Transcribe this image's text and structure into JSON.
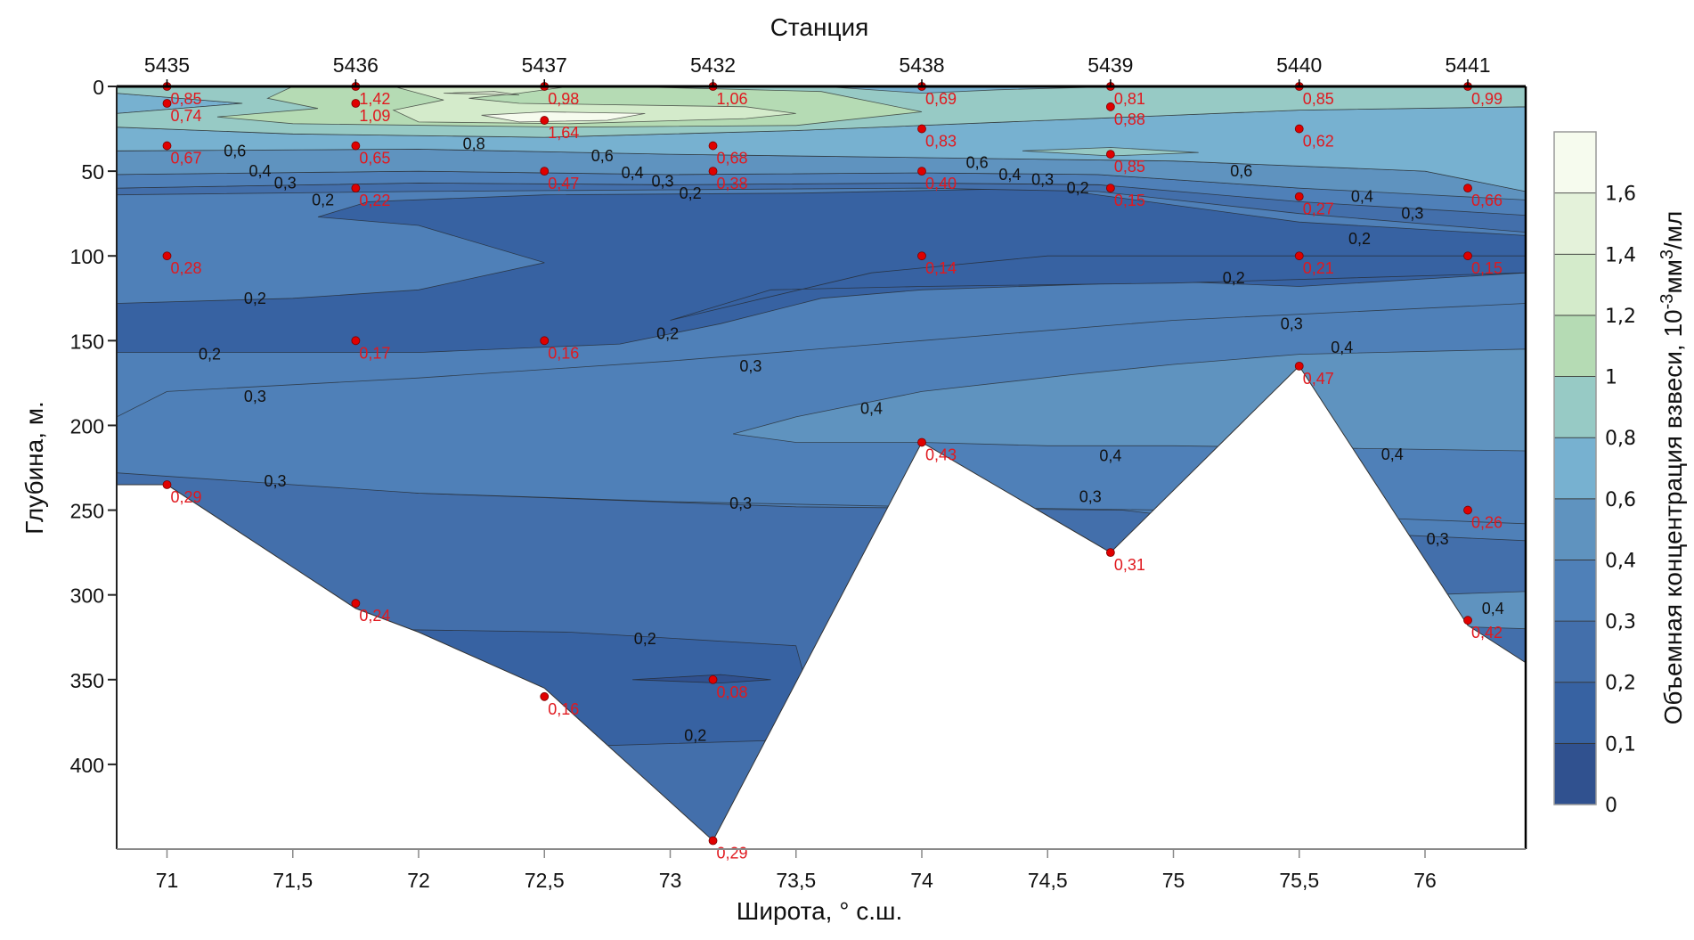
{
  "chart_data": {
    "type": "heatmap",
    "subtype": "filled-contour-section",
    "title": "",
    "top_axis_title": "Станция",
    "xlabel": "Широта, ° с.ш.",
    "ylabel": "Глубина, м.",
    "colorbar_label": "Объемная концентрация взвеси, 10⁻³мм³/мл",
    "colorbar_label_parts": {
      "text": "Объемная концентрация взвеси, 10",
      "sup1": "-3",
      "mid": "мм",
      "sup2": "3",
      "end": "/мл"
    },
    "xlim": [
      70.8,
      76.4
    ],
    "ylim": [
      450,
      0
    ],
    "x_ticks": [
      71,
      71.5,
      72,
      72.5,
      73,
      73.5,
      74,
      74.5,
      75,
      75.5,
      76
    ],
    "x_tick_labels": [
      "71",
      "71,5",
      "72",
      "72,5",
      "73",
      "73,5",
      "74",
      "74,5",
      "75",
      "75,5",
      "76"
    ],
    "y_ticks": [
      0,
      50,
      100,
      150,
      200,
      250,
      300,
      350,
      400
    ],
    "y_tick_labels": [
      "0",
      "50",
      "100",
      "150",
      "200",
      "250",
      "300",
      "350",
      "400"
    ],
    "levels": [
      0,
      0.1,
      0.2,
      0.3,
      0.4,
      0.6,
      0.8,
      1,
      1.2,
      1.4,
      1.6
    ],
    "level_labels": [
      "0",
      "0,1",
      "0,2",
      "0,3",
      "0,4",
      "0,6",
      "0,8",
      "1",
      "1,2",
      "1,4",
      "1,6"
    ],
    "level_colors": [
      "#30518f",
      "#3762a2",
      "#436fab",
      "#4f80b8",
      "#5f93bf",
      "#77b1d0",
      "#97cac5",
      "#b5dbb4",
      "#d4ebcb",
      "#e4f2da",
      "#f6fbee"
    ],
    "stations": [
      {
        "name": "5435",
        "lat": 71.0,
        "bottom": 235,
        "samples": [
          {
            "depth": 0,
            "value": 0.85,
            "label": "0,85"
          },
          {
            "depth": 10,
            "value": 0.74,
            "label": "0,74"
          },
          {
            "depth": 35,
            "value": 0.67,
            "label": "0,67"
          },
          {
            "depth": 100,
            "value": 0.28,
            "label": "0,28"
          },
          {
            "depth": 235,
            "value": 0.29,
            "label": "0,29"
          }
        ]
      },
      {
        "name": "5436",
        "lat": 71.75,
        "bottom": 310,
        "samples": [
          {
            "depth": 0,
            "value": 1.42,
            "label": "1,42"
          },
          {
            "depth": 10,
            "value": 1.09,
            "label": "1,09"
          },
          {
            "depth": 35,
            "value": 0.65,
            "label": "0,65"
          },
          {
            "depth": 60,
            "value": 0.22,
            "label": "0,22"
          },
          {
            "depth": 150,
            "value": 0.17,
            "label": "0,17"
          },
          {
            "depth": 305,
            "value": 0.24,
            "label": "0,24"
          }
        ]
      },
      {
        "name": "5437",
        "lat": 72.5,
        "bottom": 360,
        "samples": [
          {
            "depth": 0,
            "value": 0.98,
            "label": "0,98"
          },
          {
            "depth": 20,
            "value": 1.64,
            "label": "1,64"
          },
          {
            "depth": 50,
            "value": 0.47,
            "label": "0,47"
          },
          {
            "depth": 150,
            "value": 0.16,
            "label": "0,16"
          },
          {
            "depth": 360,
            "value": 0.16,
            "label": "0,16"
          }
        ]
      },
      {
        "name": "5432",
        "lat": 73.17,
        "bottom": 445,
        "samples": [
          {
            "depth": 0,
            "value": 1.06,
            "label": "1,06"
          },
          {
            "depth": 35,
            "value": 0.68,
            "label": "0,68"
          },
          {
            "depth": 50,
            "value": 0.38,
            "label": "0,38"
          },
          {
            "depth": 350,
            "value": 0.08,
            "label": "0,08"
          },
          {
            "depth": 445,
            "value": 0.29,
            "label": "0,29"
          }
        ]
      },
      {
        "name": "5438",
        "lat": 74.0,
        "bottom": 210,
        "samples": [
          {
            "depth": 0,
            "value": 0.69,
            "label": "0,69"
          },
          {
            "depth": 25,
            "value": 0.83,
            "label": "0,83"
          },
          {
            "depth": 50,
            "value": 0.4,
            "label": "0,40"
          },
          {
            "depth": 100,
            "value": 0.14,
            "label": "0,14"
          },
          {
            "depth": 210,
            "value": 0.43,
            "label": "0,43"
          }
        ]
      },
      {
        "name": "5439",
        "lat": 74.75,
        "bottom": 275,
        "samples": [
          {
            "depth": 0,
            "value": 0.81,
            "label": "0,81"
          },
          {
            "depth": 12,
            "value": 0.88,
            "label": "0,88"
          },
          {
            "depth": 40,
            "value": 0.85,
            "label": "0,85"
          },
          {
            "depth": 60,
            "value": 0.15,
            "label": "0,15"
          },
          {
            "depth": 275,
            "value": 0.31,
            "label": "0,31"
          }
        ]
      },
      {
        "name": "5440",
        "lat": 75.5,
        "bottom": 165,
        "samples": [
          {
            "depth": 0,
            "value": 0.85,
            "label": "0,85"
          },
          {
            "depth": 25,
            "value": 0.62,
            "label": "0,62"
          },
          {
            "depth": 65,
            "value": 0.27,
            "label": "0,27"
          },
          {
            "depth": 100,
            "value": 0.21,
            "label": "0,21"
          },
          {
            "depth": 165,
            "value": 0.47,
            "label": "0,47"
          }
        ]
      },
      {
        "name": "5441",
        "lat": 76.17,
        "bottom": 315,
        "samples": [
          {
            "depth": 0,
            "value": 0.99,
            "label": "0,99"
          },
          {
            "depth": 60,
            "value": 0.66,
            "label": "0,66"
          },
          {
            "depth": 100,
            "value": 0.15,
            "label": "0,15"
          },
          {
            "depth": 250,
            "value": 0.26,
            "label": "0,26"
          },
          {
            "depth": 315,
            "value": 0.42,
            "label": "0,42"
          }
        ]
      }
    ],
    "bottom_profile": [
      [
        70.8,
        235
      ],
      [
        71.0,
        235
      ],
      [
        71.75,
        308
      ],
      [
        72.0,
        322
      ],
      [
        72.5,
        355
      ],
      [
        73.17,
        445
      ],
      [
        74.0,
        210
      ],
      [
        74.75,
        275
      ],
      [
        75.5,
        165
      ],
      [
        76.17,
        318
      ],
      [
        76.4,
        340
      ]
    ],
    "contour_labels": [
      {
        "lat": 71.27,
        "depth": 38,
        "text": "0,6"
      },
      {
        "lat": 71.37,
        "depth": 50,
        "text": "0,4"
      },
      {
        "lat": 71.47,
        "depth": 57,
        "text": "0,3"
      },
      {
        "lat": 71.62,
        "depth": 67,
        "text": "0,2"
      },
      {
        "lat": 72.22,
        "depth": 34,
        "text": "0,8"
      },
      {
        "lat": 72.73,
        "depth": 41,
        "text": "0,6"
      },
      {
        "lat": 72.85,
        "depth": 51,
        "text": "0,4"
      },
      {
        "lat": 72.97,
        "depth": 56,
        "text": "0,3"
      },
      {
        "lat": 73.08,
        "depth": 63,
        "text": "0,2"
      },
      {
        "lat": 74.22,
        "depth": 45,
        "text": "0,6"
      },
      {
        "lat": 74.35,
        "depth": 52,
        "text": "0,4"
      },
      {
        "lat": 74.48,
        "depth": 55,
        "text": "0,3"
      },
      {
        "lat": 74.62,
        "depth": 60,
        "text": "0,2"
      },
      {
        "lat": 75.27,
        "depth": 50,
        "text": "0,6"
      },
      {
        "lat": 75.75,
        "depth": 65,
        "text": "0,4"
      },
      {
        "lat": 75.95,
        "depth": 75,
        "text": "0,3"
      },
      {
        "lat": 75.74,
        "depth": 90,
        "text": "0,2"
      },
      {
        "lat": 71.35,
        "depth": 125,
        "text": "0,2"
      },
      {
        "lat": 75.24,
        "depth": 113,
        "text": "0,2"
      },
      {
        "lat": 72.99,
        "depth": 146,
        "text": "0,2"
      },
      {
        "lat": 71.17,
        "depth": 158,
        "text": "0,2"
      },
      {
        "lat": 75.47,
        "depth": 140,
        "text": "0,3"
      },
      {
        "lat": 75.67,
        "depth": 154,
        "text": "0,4"
      },
      {
        "lat": 73.32,
        "depth": 165,
        "text": "0,3"
      },
      {
        "lat": 71.35,
        "depth": 183,
        "text": "0,3"
      },
      {
        "lat": 73.8,
        "depth": 190,
        "text": "0,4"
      },
      {
        "lat": 74.75,
        "depth": 218,
        "text": "0,4"
      },
      {
        "lat": 75.87,
        "depth": 217,
        "text": "0,4"
      },
      {
        "lat": 71.43,
        "depth": 233,
        "text": "0,3"
      },
      {
        "lat": 73.28,
        "depth": 246,
        "text": "0,3"
      },
      {
        "lat": 74.67,
        "depth": 242,
        "text": "0,3"
      },
      {
        "lat": 76.05,
        "depth": 267,
        "text": "0,3"
      },
      {
        "lat": 72.9,
        "depth": 326,
        "text": "0,2"
      },
      {
        "lat": 73.1,
        "depth": 383,
        "text": "0,2"
      },
      {
        "lat": 76.27,
        "depth": 308,
        "text": "0,4"
      }
    ],
    "grid": false,
    "colorbar_placement": "right"
  }
}
